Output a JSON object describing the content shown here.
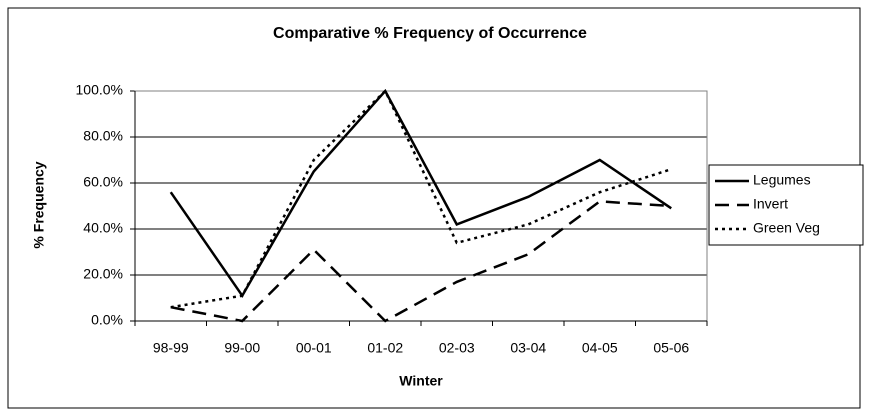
{
  "chart_data": {
    "type": "line",
    "title": "Comparative % Frequency of Occurrence",
    "x_label": "Winter",
    "y_label": "% Frequency",
    "categories": [
      "98-99",
      "99-00",
      "00-01",
      "01-02",
      "02-03",
      "03-04",
      "04-05",
      "05-06"
    ],
    "series": [
      {
        "name": "Legumes",
        "color": "#000000",
        "dash": "solid",
        "values": [
          56,
          11,
          65,
          100,
          42,
          54,
          70,
          49
        ]
      },
      {
        "name": "Invert",
        "color": "#000000",
        "dash": "dashed",
        "values": [
          6,
          0,
          31,
          0,
          17,
          29,
          52,
          50
        ]
      },
      {
        "name": "Green Veg",
        "color": "#000000",
        "dash": "dotted",
        "values": [
          6,
          11,
          70,
          100,
          34,
          42,
          56,
          66
        ]
      }
    ],
    "ylim": [
      0,
      100
    ],
    "yticks": [
      {
        "value": 0,
        "label": "0.0%"
      },
      {
        "value": 20,
        "label": "20.0%"
      },
      {
        "value": 40,
        "label": "40.0%"
      },
      {
        "value": 60,
        "label": "60.0%"
      },
      {
        "value": 80,
        "label": "80.0%"
      },
      {
        "value": 100,
        "label": "100.0%"
      }
    ],
    "grid": true,
    "legend": "right"
  }
}
